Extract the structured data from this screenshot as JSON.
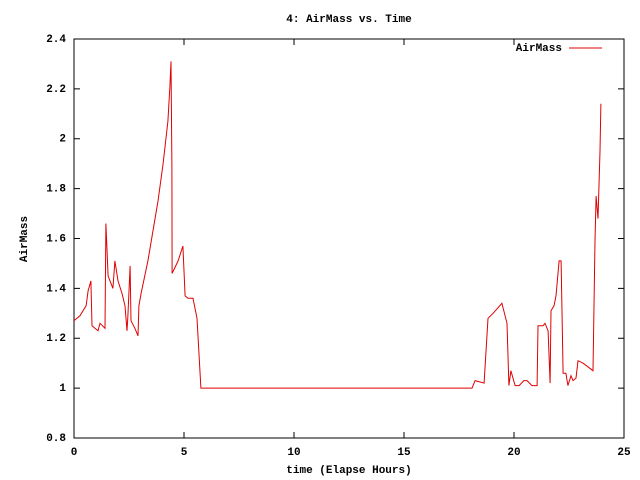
{
  "chart_data": {
    "type": "line",
    "title": "4: AirMass vs. Time",
    "xlabel": "time (Elapse Hours)",
    "ylabel": "AirMass",
    "xlim": [
      0,
      25
    ],
    "xticks": [
      0,
      5,
      10,
      15,
      20,
      25
    ],
    "ylim": [
      0.8,
      2.4
    ],
    "yticks": [
      0.8,
      1,
      1.2,
      1.4,
      1.6,
      1.8,
      2,
      2.2,
      2.4
    ],
    "legend": "top-right",
    "x": [
      0,
      0.27,
      0.55,
      0.64,
      0.77,
      0.82,
      1.09,
      1.18,
      1.41,
      1.45,
      1.55,
      1.68,
      1.77,
      1.86,
      2.0,
      2.18,
      2.32,
      2.41,
      2.45,
      2.55,
      2.59,
      2.77,
      2.91,
      2.95,
      3.05,
      3.36,
      3.55,
      3.82,
      4.05,
      4.27,
      4.36,
      4.41,
      4.45,
      4.46,
      4.73,
      4.95,
      5.05,
      5.18,
      5.41,
      5.59,
      5.77,
      18.09,
      18.23,
      18.64,
      18.82,
      19.05,
      19.45,
      19.68,
      19.77,
      19.86,
      20.05,
      20.23,
      20.45,
      20.59,
      20.82,
      21.05,
      21.09,
      21.32,
      21.41,
      21.55,
      21.64,
      21.68,
      21.82,
      21.91,
      22.05,
      22.14,
      22.23,
      22.36,
      22.45,
      22.59,
      22.68,
      22.82,
      22.91,
      23.14,
      23.59,
      23.68,
      23.73,
      23.82,
      23.91,
      23.95
    ],
    "series": [
      {
        "name": "AirMass",
        "color": "#e00000",
        "values": [
          1.27,
          1.29,
          1.33,
          1.39,
          1.43,
          1.25,
          1.23,
          1.26,
          1.24,
          1.66,
          1.45,
          1.42,
          1.4,
          1.51,
          1.43,
          1.38,
          1.33,
          1.23,
          1.29,
          1.49,
          1.27,
          1.24,
          1.21,
          1.33,
          1.38,
          1.51,
          1.61,
          1.75,
          1.9,
          2.07,
          2.21,
          2.31,
          1.89,
          1.46,
          1.51,
          1.57,
          1.37,
          1.36,
          1.36,
          1.28,
          1.0,
          1.0,
          1.03,
          1.02,
          1.28,
          1.3,
          1.34,
          1.26,
          1.01,
          1.07,
          1.01,
          1.01,
          1.03,
          1.03,
          1.01,
          1.01,
          1.25,
          1.25,
          1.26,
          1.23,
          1.02,
          1.31,
          1.33,
          1.37,
          1.51,
          1.51,
          1.06,
          1.06,
          1.01,
          1.05,
          1.03,
          1.04,
          1.11,
          1.1,
          1.07,
          1.59,
          1.77,
          1.68,
          1.95,
          2.14
        ]
      }
    ]
  }
}
